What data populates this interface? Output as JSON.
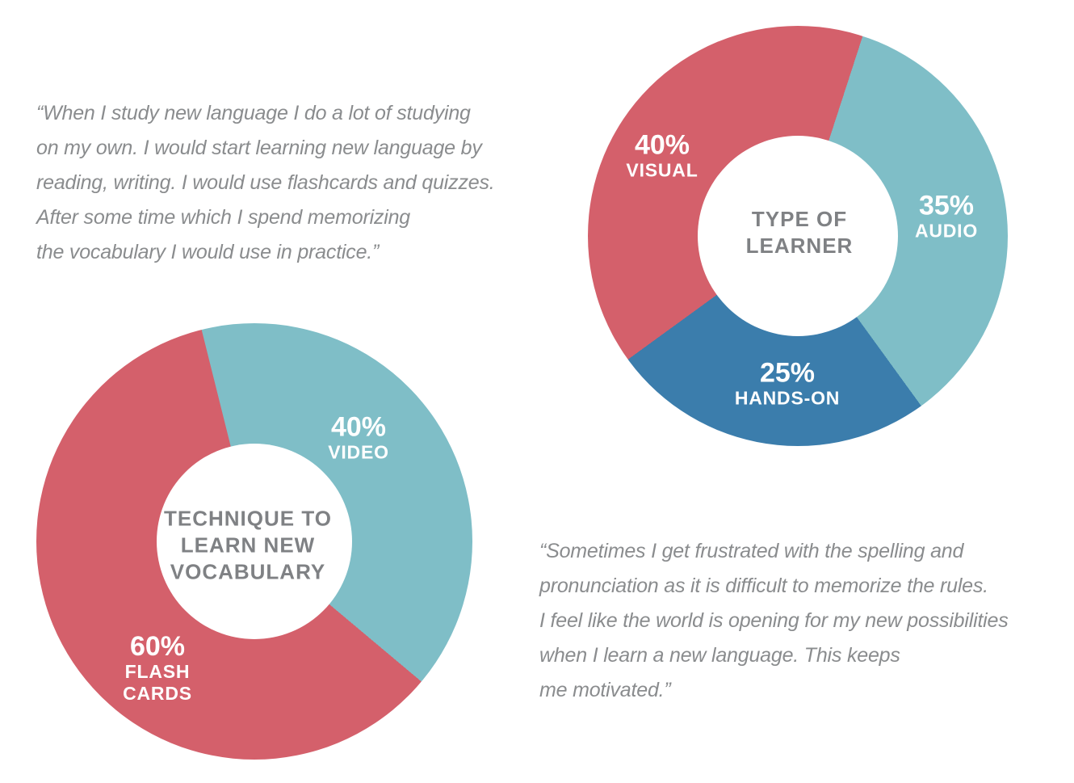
{
  "quotes": [
    {
      "lines": [
        "“When I study new language I do a lot of studying",
        "on my own. I would start learning new language by",
        "reading, writing. I would use flashcards and quizzes.",
        "After some time which I spend memorizing",
        "the vocabulary I would use in practice.”"
      ]
    },
    {
      "lines": [
        "“Sometimes I get frustrated with the spelling and",
        "pronunciation as it is difficult to memorize the rules.",
        "I feel like the world is opening for my new possibilities",
        "when I learn a new language. This keeps",
        "me motivated.”"
      ]
    }
  ],
  "chart_data": [
    {
      "type": "pie",
      "subtype": "donut",
      "title": "TYPE OF LEARNER",
      "rotation_deg": 234,
      "legend_position": "on-slice",
      "label_color": "#ffffff",
      "center_title_color": "#7f8184",
      "slices": [
        {
          "label": "VISUAL",
          "value": 40,
          "color": "#d4606b"
        },
        {
          "label": "AUDIO",
          "value": 35,
          "color": "#7fbec7"
        },
        {
          "label": "HANDS-ON",
          "value": 25,
          "color": "#3b7dac"
        }
      ]
    },
    {
      "type": "pie",
      "subtype": "donut",
      "title": "TECHNIQUE TO LEARN NEW VOCABULARY",
      "rotation_deg": -14,
      "legend_position": "on-slice",
      "label_color": "#ffffff",
      "center_title_color": "#7f8184",
      "slices": [
        {
          "label": "VIDEO",
          "value": 40,
          "color": "#7fbec7"
        },
        {
          "label": "FLASH CARDS",
          "value": 60,
          "color": "#d4606b"
        }
      ]
    }
  ]
}
